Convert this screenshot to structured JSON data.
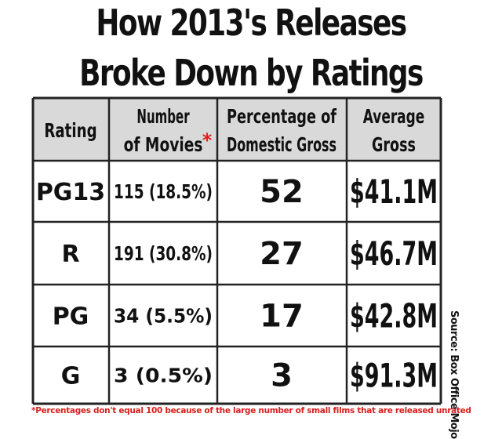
{
  "title": {
    "line1": "How 2013's Releases",
    "line2": "Broke Down by Ratings"
  },
  "chart_data": {
    "type": "table",
    "columns": [
      "Rating",
      "Number of Movies",
      "Percentage of Domestic Gross",
      "Average Gross"
    ],
    "header_lines": [
      [
        "Rating"
      ],
      [
        "Number",
        "of Movies"
      ],
      [
        "Percentage of",
        "Domestic Gross"
      ],
      [
        "Average",
        "Gross"
      ]
    ],
    "header_asterisk": "*",
    "rows": [
      {
        "rating": "PG13",
        "movies": "115 (18.5%)",
        "pct_gross": "52",
        "avg_gross": "$41.1M"
      },
      {
        "rating": "R",
        "movies": "191 (30.8%)",
        "pct_gross": "27",
        "avg_gross": "$46.7M"
      },
      {
        "rating": "PG",
        "movies": "34 (5.5%)",
        "pct_gross": "17",
        "avg_gross": "$42.8M"
      },
      {
        "rating": "G",
        "movies": "3 (0.5%)",
        "pct_gross": "3",
        "avg_gross": "$91.3M"
      }
    ]
  },
  "source": "Source: Box Office Mojo",
  "footnote": "*Percentages don't equal 100 because of the large number of small films that are released unrated",
  "colors": {
    "text": "#111111",
    "header_bg": "#d9d9d9",
    "border": "#222222",
    "footnote": "#d8201e"
  }
}
